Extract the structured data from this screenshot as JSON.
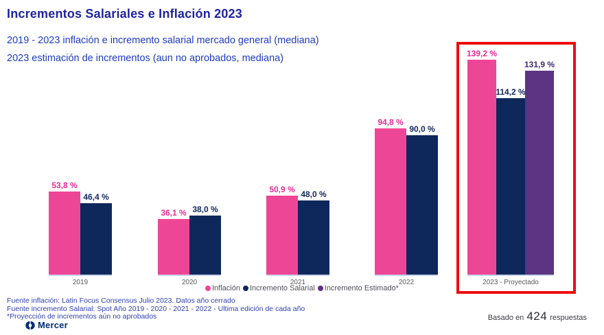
{
  "header": {
    "title": "Incrementos Salariales e Inflación 2023",
    "subtitle1": "2019 - 2023 inflación e incremento salarial mercado general (mediana)",
    "subtitle2": "2023 estimación de incrementos (aun no aprobados, mediana)"
  },
  "chart_data": {
    "type": "bar",
    "categories": [
      "2019",
      "2020",
      "2021",
      "2022",
      "2023 - Proyectado"
    ],
    "series": [
      {
        "name": "Inflación",
        "color": "#EE4696",
        "label_color": "#E92B90",
        "values": [
          53.8,
          36.1,
          50.9,
          94.8,
          139.2
        ],
        "labels": [
          "53,8 %",
          "36,1 %",
          "50,9 %",
          "94,8 %",
          "139,2 %"
        ]
      },
      {
        "name": "Incremento Salarial",
        "color": "#0E285C",
        "label_color": "#13265E",
        "values": [
          46.4,
          38.0,
          48.0,
          90.0,
          114.2
        ],
        "labels": [
          "46,4 %",
          "38,0 %",
          "48,0 %",
          "90,0 %",
          "114,2 %"
        ]
      },
      {
        "name": "Incremento Estimado*",
        "color": "#5C3483",
        "label_color": "#3F2C6F",
        "values": [
          null,
          null,
          null,
          null,
          131.9
        ],
        "labels": [
          null,
          null,
          null,
          null,
          "131,9 %"
        ]
      }
    ],
    "highlight_category": "2023 - Proyectado",
    "ylim": [
      0,
      150
    ],
    "grid": false,
    "legend_position": "bottom",
    "data_labels": true,
    "unit": "%"
  },
  "footer": {
    "line1": "Fuente inflación: Latin Focus Consensus Julio 2023. Datos año cerrado",
    "line2": "Fuente incremento Salarial: Spot Año 2019 - 2020 - 2021 - 2022 - Ultima edición de cada año",
    "line3": "*Proyección de incrementos aún no aprobados",
    "brand": "Mercer",
    "based_prefix": "Basado en",
    "based_count": "424",
    "based_suffix": "respuestas"
  },
  "colors": {
    "title": "#20239F",
    "subtitle": "#1E3AC0",
    "highlight_border": "#ED0C0C",
    "brand_blue": "#002C77"
  }
}
